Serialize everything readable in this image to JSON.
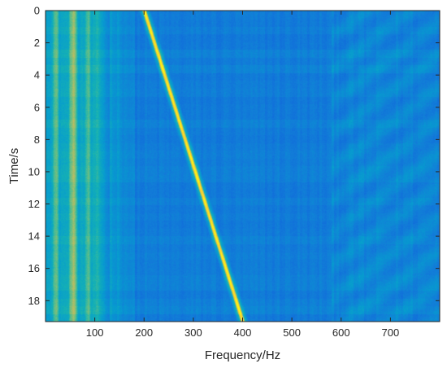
{
  "chart_data": {
    "type": "heatmap",
    "xlabel": "Frequency/Hz",
    "ylabel": "Time/s",
    "xlim": [
      0,
      800
    ],
    "ylim": [
      0,
      19.3
    ],
    "y_direction": "reversed",
    "grid": false,
    "colormap": "parula",
    "x_ticks": [
      "100",
      "200",
      "300",
      "400",
      "500",
      "600",
      "700"
    ],
    "x_tick_values": [
      100,
      200,
      300,
      400,
      500,
      600,
      700
    ],
    "y_ticks": [
      "0",
      "2",
      "4",
      "6",
      "8",
      "10",
      "12",
      "14",
      "16",
      "18"
    ],
    "y_tick_values": [
      0,
      2,
      4,
      6,
      8,
      10,
      12,
      14,
      16,
      18
    ],
    "features": {
      "chirp_line": {
        "start": {
          "time": 0,
          "frequency": 200
        },
        "end": {
          "time": 19.3,
          "frequency": 400
        },
        "intensity": 1.0
      },
      "low_frequency_bands": [
        {
          "frequency": 20,
          "intensity": 0.62
        },
        {
          "frequency": 55,
          "intensity": 0.72
        },
        {
          "frequency": 85,
          "intensity": 0.6
        },
        {
          "frequency": 105,
          "intensity": 0.52
        }
      ],
      "high_frequency_region": {
        "frequency_range": [
          580,
          800
        ],
        "intensity": 0.38
      },
      "background_intensity": 0.3
    }
  }
}
